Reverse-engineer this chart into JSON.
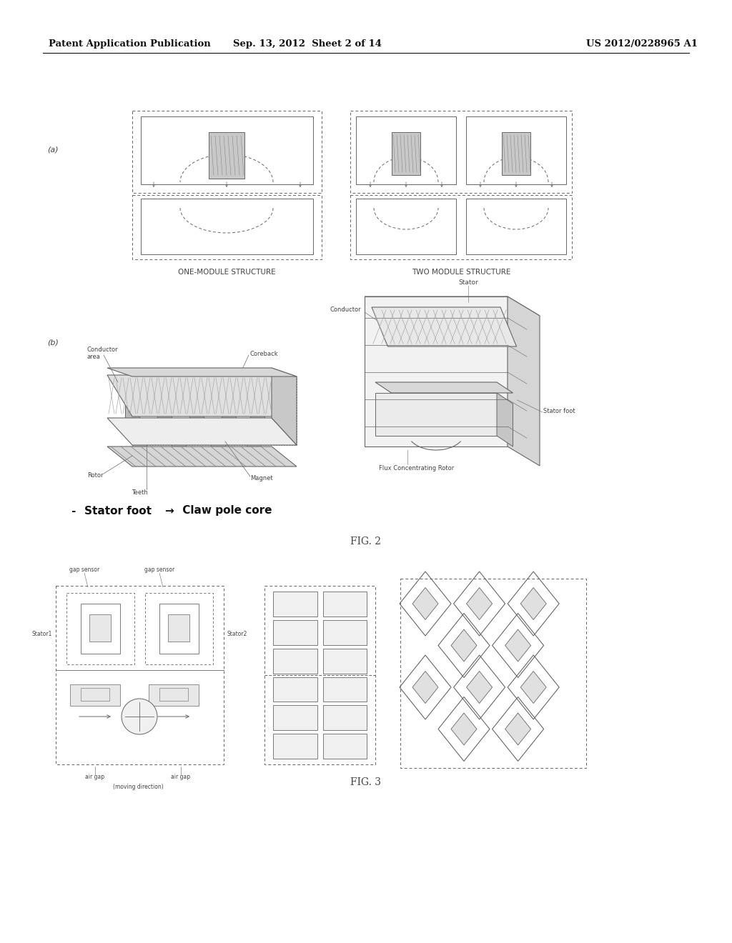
{
  "page_title_left": "Patent Application Publication",
  "page_title_mid": "Sep. 13, 2012  Sheet 2 of 14",
  "page_title_right": "US 2012/0228965 A1",
  "fig2_label": "FIG. 2",
  "fig3_label": "FIG. 3",
  "bg_color": "#ffffff",
  "line_color": "#666666",
  "text_color": "#444444",
  "header_color": "#111111"
}
